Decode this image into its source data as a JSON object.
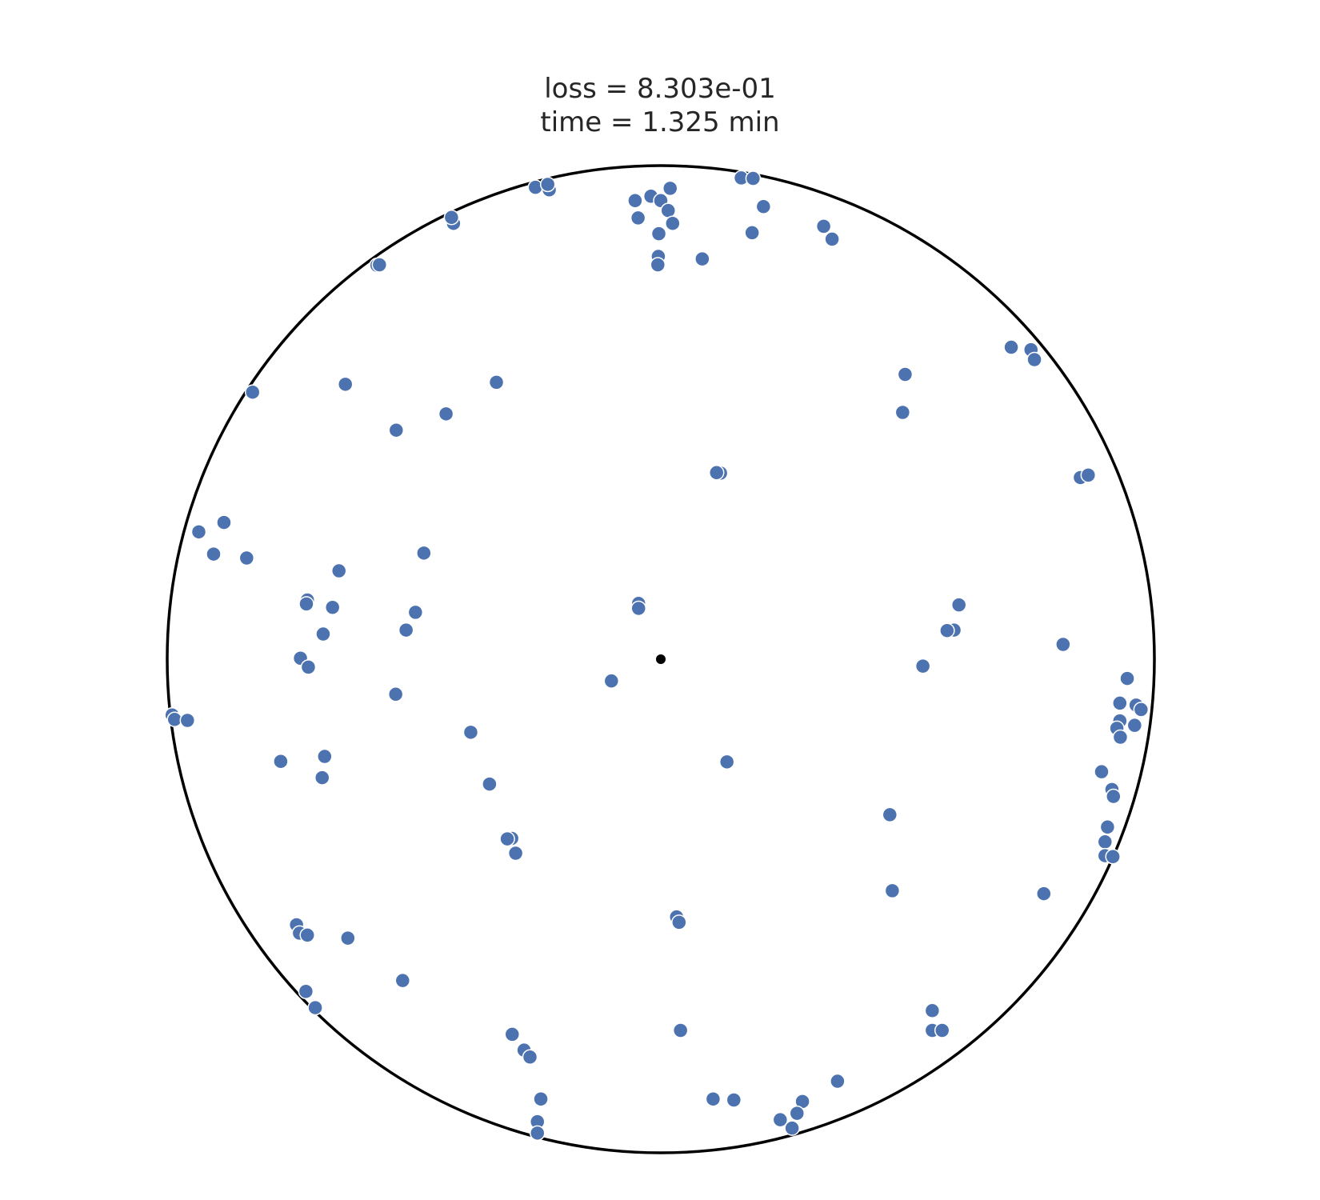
{
  "chart_data": {
    "type": "scatter",
    "title_lines": [
      "loss = 8.303e-01",
      "time = 1.325 min"
    ],
    "xlim": [
      -1,
      1
    ],
    "ylim": [
      -1,
      1
    ],
    "boundary": "unit-circle",
    "grid": false,
    "legend": "none",
    "point_color": "#4c72b0",
    "point_edge_color": "#ffffff",
    "boundary_color": "#000000",
    "center_point": {
      "x": 0,
      "y": 0,
      "color": "#000000"
    },
    "series": [
      {
        "points": [
          {
            "x": -0.254,
            "y": 0.956
          },
          {
            "x": -0.226,
            "y": 0.951
          },
          {
            "x": -0.229,
            "y": 0.962
          },
          {
            "x": -0.42,
            "y": 0.883
          },
          {
            "x": -0.424,
            "y": 0.895
          },
          {
            "x": -0.575,
            "y": 0.798
          },
          {
            "x": -0.57,
            "y": 0.799
          },
          {
            "x": -0.052,
            "y": 0.929
          },
          {
            "x": -0.02,
            "y": 0.938
          },
          {
            "x": 0.019,
            "y": 0.954
          },
          {
            "x": 0.0,
            "y": 0.929
          },
          {
            "x": 0.015,
            "y": 0.909
          },
          {
            "x": -0.046,
            "y": 0.894
          },
          {
            "x": 0.024,
            "y": 0.883
          },
          {
            "x": -0.004,
            "y": 0.862
          },
          {
            "x": -0.005,
            "y": 0.816
          },
          {
            "x": -0.006,
            "y": 0.799
          },
          {
            "x": 0.084,
            "y": 0.811
          },
          {
            "x": 0.163,
            "y": 0.975
          },
          {
            "x": 0.187,
            "y": 0.974
          },
          {
            "x": 0.208,
            "y": 0.917
          },
          {
            "x": 0.185,
            "y": 0.864
          },
          {
            "x": 0.33,
            "y": 0.877
          },
          {
            "x": 0.347,
            "y": 0.851
          },
          {
            "x": 0.71,
            "y": 0.632
          },
          {
            "x": 0.75,
            "y": 0.627
          },
          {
            "x": 0.757,
            "y": 0.607
          },
          {
            "x": 0.495,
            "y": 0.577
          },
          {
            "x": 0.49,
            "y": 0.5
          },
          {
            "x": 0.85,
            "y": 0.368
          },
          {
            "x": 0.866,
            "y": 0.373
          },
          {
            "x": 0.121,
            "y": 0.377
          },
          {
            "x": 0.113,
            "y": 0.378
          },
          {
            "x": -0.827,
            "y": 0.541
          },
          {
            "x": -0.639,
            "y": 0.557
          },
          {
            "x": -0.333,
            "y": 0.561
          },
          {
            "x": -0.435,
            "y": 0.497
          },
          {
            "x": -0.536,
            "y": 0.464
          },
          {
            "x": -0.936,
            "y": 0.258
          },
          {
            "x": -0.885,
            "y": 0.277
          },
          {
            "x": -0.906,
            "y": 0.213
          },
          {
            "x": -0.839,
            "y": 0.205
          },
          {
            "x": -0.48,
            "y": 0.215
          },
          {
            "x": -0.652,
            "y": 0.179
          },
          {
            "x": -0.716,
            "y": 0.12
          },
          {
            "x": -0.665,
            "y": 0.105
          },
          {
            "x": -0.718,
            "y": 0.112
          },
          {
            "x": -0.684,
            "y": 0.051
          },
          {
            "x": -0.516,
            "y": 0.059
          },
          {
            "x": -0.497,
            "y": 0.095
          },
          {
            "x": -0.73,
            "y": 0.002
          },
          {
            "x": -0.714,
            "y": -0.016
          },
          {
            "x": -0.537,
            "y": -0.071
          },
          {
            "x": -0.045,
            "y": 0.113
          },
          {
            "x": -0.045,
            "y": 0.103
          },
          {
            "x": 0.604,
            "y": 0.11
          },
          {
            "x": 0.594,
            "y": 0.059
          },
          {
            "x": 0.58,
            "y": 0.058
          },
          {
            "x": 0.815,
            "y": 0.03
          },
          {
            "x": 0.531,
            "y": -0.014
          },
          {
            "x": -0.1,
            "y": -0.044
          },
          {
            "x": 0.945,
            "y": -0.039
          },
          {
            "x": 0.93,
            "y": -0.089
          },
          {
            "x": 0.963,
            "y": -0.093
          },
          {
            "x": 0.973,
            "y": -0.102
          },
          {
            "x": 0.93,
            "y": -0.125
          },
          {
            "x": 0.96,
            "y": -0.134
          },
          {
            "x": 0.924,
            "y": -0.14
          },
          {
            "x": 0.931,
            "y": -0.158
          },
          {
            "x": -0.99,
            "y": -0.113
          },
          {
            "x": -0.985,
            "y": -0.122
          },
          {
            "x": -0.959,
            "y": -0.124
          },
          {
            "x": -0.385,
            "y": -0.148
          },
          {
            "x": -0.77,
            "y": -0.207
          },
          {
            "x": -0.681,
            "y": -0.197
          },
          {
            "x": -0.686,
            "y": -0.24
          },
          {
            "x": -0.347,
            "y": -0.253
          },
          {
            "x": 0.134,
            "y": -0.208
          },
          {
            "x": 0.893,
            "y": -0.228
          },
          {
            "x": 0.914,
            "y": -0.264
          },
          {
            "x": 0.917,
            "y": -0.278
          },
          {
            "x": 0.464,
            "y": -0.315
          },
          {
            "x": 0.905,
            "y": -0.34
          },
          {
            "x": 0.9,
            "y": -0.37
          },
          {
            "x": 0.9,
            "y": -0.398
          },
          {
            "x": 0.916,
            "y": -0.4
          },
          {
            "x": -0.302,
            "y": -0.363
          },
          {
            "x": -0.311,
            "y": -0.364
          },
          {
            "x": -0.294,
            "y": -0.393
          },
          {
            "x": 0.469,
            "y": -0.469
          },
          {
            "x": 0.776,
            "y": -0.475
          },
          {
            "x": 0.032,
            "y": -0.522
          },
          {
            "x": 0.037,
            "y": -0.533
          },
          {
            "x": -0.738,
            "y": -0.538
          },
          {
            "x": -0.732,
            "y": -0.555
          },
          {
            "x": -0.716,
            "y": -0.559
          },
          {
            "x": -0.634,
            "y": -0.565
          },
          {
            "x": -0.523,
            "y": -0.651
          },
          {
            "x": -0.719,
            "y": -0.673
          },
          {
            "x": -0.7,
            "y": -0.706
          },
          {
            "x": 0.55,
            "y": -0.712
          },
          {
            "x": 0.55,
            "y": -0.752
          },
          {
            "x": 0.57,
            "y": -0.752
          },
          {
            "x": 0.04,
            "y": -0.752
          },
          {
            "x": -0.301,
            "y": -0.76
          },
          {
            "x": -0.277,
            "y": -0.792
          },
          {
            "x": -0.265,
            "y": -0.806
          },
          {
            "x": 0.358,
            "y": -0.855
          },
          {
            "x": 0.106,
            "y": -0.891
          },
          {
            "x": 0.148,
            "y": -0.893
          },
          {
            "x": -0.243,
            "y": -0.891
          },
          {
            "x": -0.25,
            "y": -0.937
          },
          {
            "x": -0.25,
            "y": -0.96
          },
          {
            "x": 0.287,
            "y": -0.896
          },
          {
            "x": 0.276,
            "y": -0.92
          },
          {
            "x": 0.242,
            "y": -0.933
          },
          {
            "x": 0.266,
            "y": -0.95
          }
        ]
      }
    ]
  }
}
